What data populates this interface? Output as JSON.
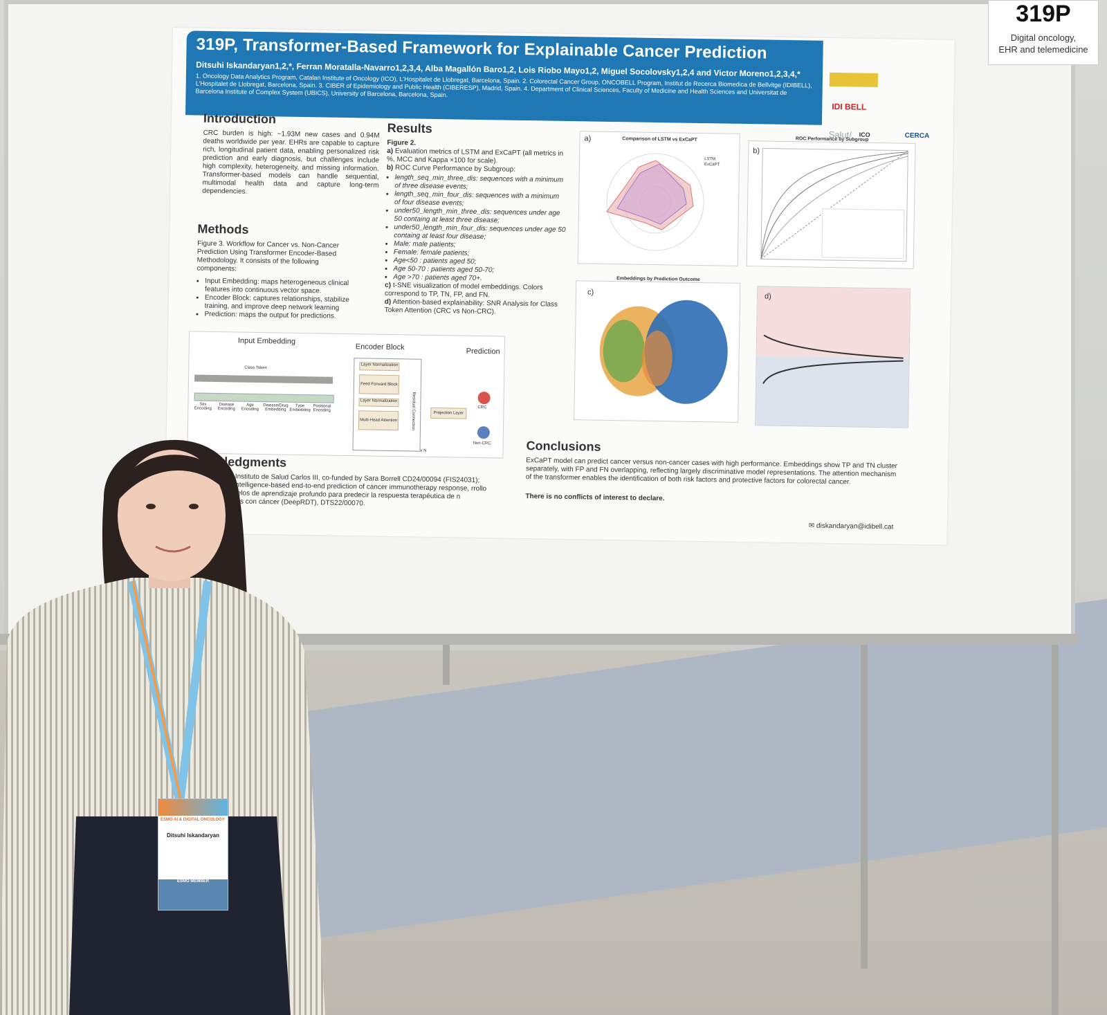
{
  "sign": {
    "number": "319P",
    "topic_line1": "Digital oncology,",
    "topic_line2": "EHR and telemedicine"
  },
  "poster": {
    "title": "319P, Transformer-Based Framework for Explainable Cancer Prediction",
    "authors": "Ditsuhi Iskandaryan1,2,*, Ferran Moratalla-Navarro1,2,3,4, Alba Magallón Baro1,2, Lois Riobo Mayo1,2, Miguel Socolovsky1,2,4 and Victor Moreno1,2,3,4,*",
    "affiliations": "1. Oncology Data Analytics Program, Catalan Institute of Oncology (ICO), L'Hospitalet de Llobregat, Barcelona, Spain. 2. Colorectal Cancer Group, ONCOBELL Program, Institut de Recerca Biomedica de Bellvitge (IDIBELL), L'Hospitalet de Llobregat, Barcelona, Spain. 3. CIBER of Epidemiology and Public Health (CIBERESP), Madrid, Spain. 4. Department of Clinical Sciences, Faculty of Medicine and Health Sciences and Universitat de Barcelona Institute of Complex System (UBICS), University of Barcelona, Barcelona, Spain.",
    "logos": {
      "idibell": "IDI BELL",
      "salut": "Salut/",
      "ico": "ICO",
      "cerca": "CERCA"
    },
    "introduction": {
      "heading": "Introduction",
      "text": "CRC burden is high: ~1.93M new cases and 0.94M deaths worldwide per year. EHRs are capable to capture rich, longitudinal patient data, enabling personalized risk prediction and early diagnosis, but challenges include high complexity, heterogeneity, and missing information. Transformer-based models can handle sequential, multimodal health data and capture long-term dependencies."
    },
    "methods": {
      "heading": "Methods",
      "figure_caption": "Figure 3. Workflow for Cancer vs. Non-Cancer Prediction Using Transformer Encoder-Based Methodology. It consists of the following components:",
      "items": [
        "Input Embedding: maps heterogeneous clinical features into continuous vector space.",
        "Encoder Block: captures relationships, stabilize training, and improve deep network learning",
        "Prediction: maps the output for predictions."
      ]
    },
    "workflow": {
      "input_embedding": "Input Embedding",
      "encoder_block": "Encoder Block",
      "prediction": "Prediction",
      "class_token": "Class Token",
      "layer_norm_1": "Layer Normalization",
      "feed_forward": "Feed Forward Block",
      "layer_norm_2": "Layer Normalization",
      "multi_head": "Multi-Head Attention",
      "projection": "Projection Layer",
      "crc": "CRC",
      "non_crc": "Non-CRC",
      "nx": "x N",
      "residual": "Residual Connection",
      "encodings": [
        "Sex Encoding",
        "Disease Encoding",
        "Age Encoding",
        "Disease/Drug Embedding",
        "Type Embedding",
        "Positional Encoding"
      ]
    },
    "results": {
      "heading": "Results",
      "figure": "Figure 2.",
      "a": "Evaluation metrics of LSTM and ExCaPT (all metrics in %, MCC and Kappa ×100 for scale).",
      "b": "ROC Curve Performance by Subgroup:",
      "b_items": [
        "length_seq_min_three_dis: sequences with a minimum of three disease events;",
        "length_seq_min_four_dis: sequences with a minimum of four disease events;",
        "under50_length_min_three_dis: sequences under age 50 containg at least three disease;",
        "under50_length_min_four_dis: sequences under age 50 containg at least four disease;",
        "Male: male patients;",
        "Female: female patients;",
        "Age<50 : patients aged 50;",
        "Age 50-70 : patients aged 50-70;",
        "Age >70 : patients aged 70+."
      ],
      "c": "t-SNE visualization of model embeddings. Colors correspond to TP, TN, FP, and FN.",
      "d": "Attention-based explainability: SNR Analysis for Class Token Attention (CRC vs Non-CRC)."
    },
    "figures": {
      "a_label": "a)",
      "a_title": "Comparison of LSTM vs ExCaPT",
      "a_legend": [
        "LSTM",
        "ExCaPT"
      ],
      "b_label": "b)",
      "b_title": "ROC Performance by Subgroup",
      "c_label": "c)",
      "c_title": "Embeddings by Prediction Outcome",
      "d_label": "d)"
    },
    "acknowledgments": {
      "heading": "wledgments",
      "text": "by the Instituto de Salud Carlos III, co-funded by Sara Borrell CD24/00094 (FIS24031); tificial-intelligence-based end-to-end prediction of cancer immunotherapy response, rrollo de modelos de aprendizaje profundo para predecir la respuesta terapéutica de n pacientes con cáncer (DeepRDT), DTS22/00070."
    },
    "conclusions": {
      "heading": "Conclusions",
      "text": "ExCaPT model can predict cancer versus non-cancer cases with high performance. Embeddings show TP and TN cluster separately, with FP and FN overlapping, reflecting largely discriminative model representations. The attention mechanism of the transformer enables the identification of both risk factors and protective factors for colorectal cancer.",
      "coi": "There is no conflicts of interest to declare."
    },
    "email": "diskandaryan@idibell.cat"
  },
  "badge": {
    "event": "ESMO AI & DIGITAL ONCOLOGY",
    "name": "Ditsuhi Iskandaryan",
    "member": "ESMO MEMBER"
  },
  "colors": {
    "banner": "#1f78b4",
    "board": "#f4f4f2",
    "stripe": "#b4b2a6"
  }
}
